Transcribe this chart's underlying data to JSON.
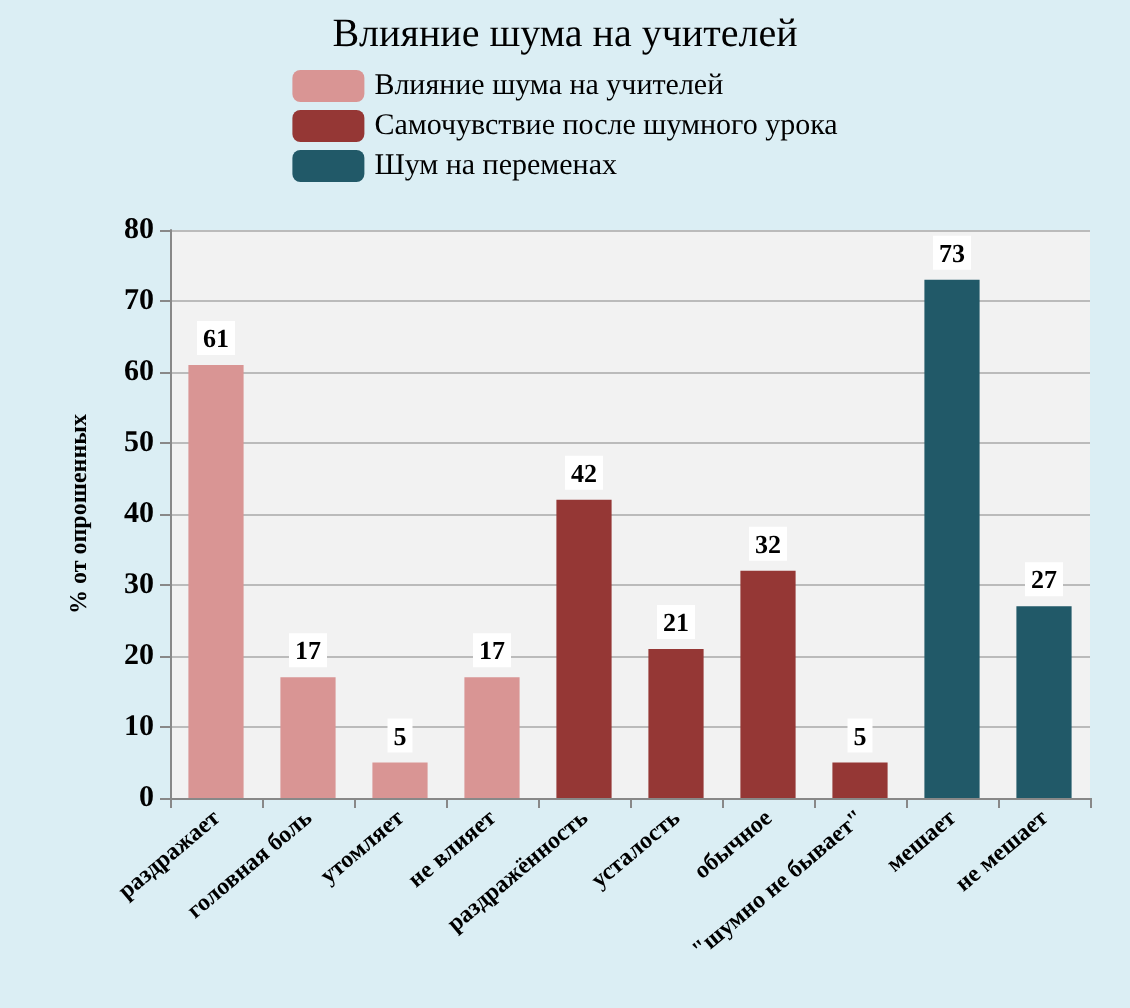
{
  "chart_data": {
    "type": "bar",
    "title": "Влияние шума на учителей",
    "ylabel": "% от опрошенных",
    "categories": [
      "раздражает",
      "головная боль",
      "утомляет",
      "не влияет",
      "раздражённость",
      "усталость",
      "обычное",
      "\"шумно не бывает\"",
      "мешает",
      "не мешает"
    ],
    "series": [
      {
        "name": "Влияние шума на учителей",
        "color": "#d99594",
        "values": [
          61,
          17,
          5,
          17,
          null,
          null,
          null,
          null,
          null,
          null
        ]
      },
      {
        "name": "Самочувствие после шумного урока",
        "color": "#953735",
        "values": [
          null,
          null,
          null,
          null,
          42,
          21,
          32,
          5,
          null,
          null
        ]
      },
      {
        "name": "Шум на переменах",
        "color": "#215968",
        "values": [
          null,
          null,
          null,
          null,
          null,
          null,
          null,
          null,
          73,
          27
        ]
      }
    ],
    "ylim": [
      0,
      80
    ],
    "yticks": [
      0,
      10,
      20,
      30,
      40,
      50,
      60,
      70,
      80
    ],
    "grid": "y",
    "legend": "top",
    "data_labels": true
  }
}
